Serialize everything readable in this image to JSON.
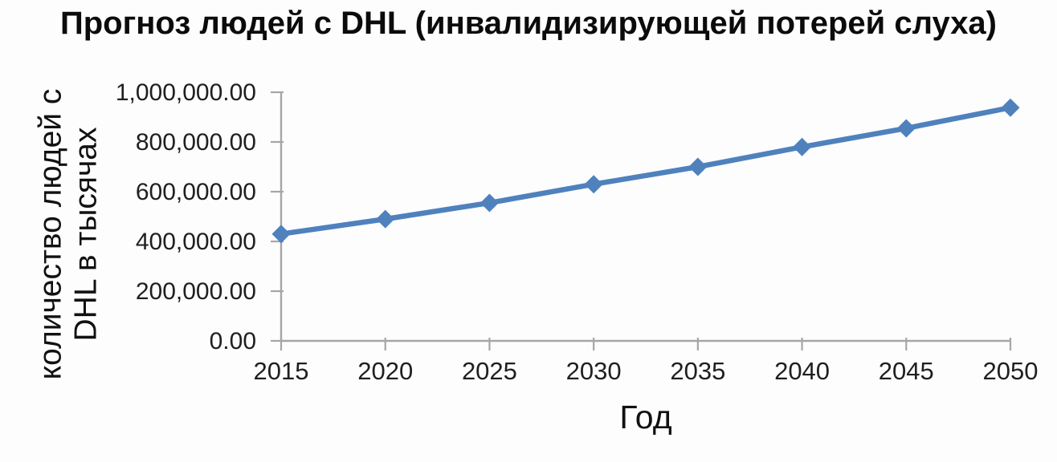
{
  "chart_data": {
    "type": "line",
    "title": "Прогноз людей с DHL (инвалидизирующей потерей слуха)",
    "xlabel": "Год",
    "ylabel": "количество людей с DHL в тысячах",
    "ylabel_lines": [
      "количество людей с",
      "DHL в тысячах"
    ],
    "categories": [
      "2015",
      "2020",
      "2025",
      "2030",
      "2035",
      "2040",
      "2045",
      "2050"
    ],
    "series": [
      {
        "name": "количество людей с DHL в тысячах",
        "values": [
          430000,
          490000,
          555000,
          630000,
          700000,
          780000,
          855000,
          938000
        ]
      }
    ],
    "ylim": [
      0,
      1000000
    ],
    "y_tick_step": 200000,
    "y_ticks": [
      0,
      200000,
      400000,
      600000,
      800000,
      1000000
    ],
    "y_tick_labels": [
      "0.00",
      "200,000.00",
      "400,000.00",
      "600,000.00",
      "800,000.00",
      "1,000,000.00"
    ],
    "grid": false,
    "legend_position": "none",
    "marker": "diamond",
    "colors": {
      "series": "#4f81bd",
      "axis": "#a6a6a6",
      "text": "#1f1f1f",
      "background": "#fdfdfe"
    }
  }
}
